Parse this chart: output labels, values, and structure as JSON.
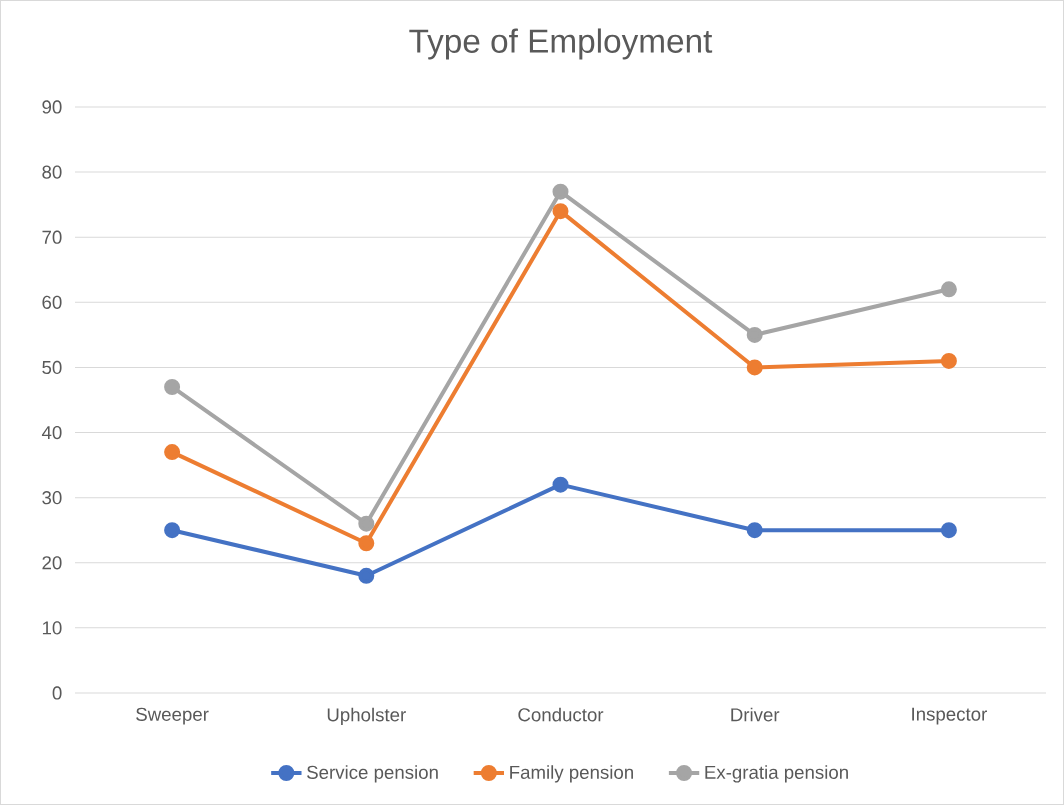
{
  "chart_data": {
    "type": "line",
    "title": "Type of Employment",
    "categories": [
      "Sweeper",
      "Upholster",
      "Conductor",
      "Driver",
      "Inspector"
    ],
    "series": [
      {
        "name": "Service pension",
        "color": "#4472c4",
        "values": [
          25,
          18,
          32,
          25,
          25
        ]
      },
      {
        "name": "Family pension",
        "color": "#ed7d31",
        "values": [
          37,
          23,
          74,
          50,
          51
        ]
      },
      {
        "name": "Ex-gratia pension",
        "color": "#a5a5a5",
        "values": [
          47,
          26,
          77,
          55,
          62
        ]
      }
    ],
    "ylim": [
      0,
      90
    ],
    "yticks": [
      0,
      10,
      20,
      30,
      40,
      50,
      60,
      70,
      80,
      90
    ],
    "grid": "y",
    "legend": "bottom",
    "marker": "circle",
    "line_style": "solid"
  }
}
